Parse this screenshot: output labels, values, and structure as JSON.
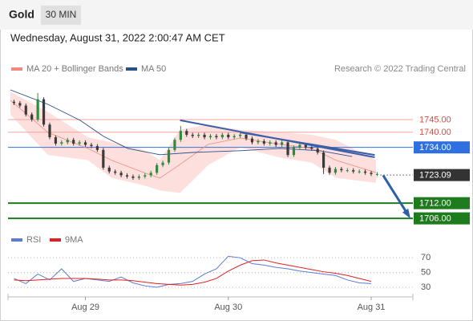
{
  "header": {
    "title": "Gold",
    "timeframe": "30 MIN",
    "timestamp": "Wednesday, August 31, 2022 2:00:47 AM CET"
  },
  "credit": "Research © 2022 Trading Central",
  "chart_data": [
    {
      "type": "candlestick",
      "xlim": [
        -13,
        55
      ],
      "ylim": [
        1703.5,
        1760.5
      ],
      "up_color": "#2e8b3e",
      "down_color": "#3a3a3a",
      "x": [
        -12,
        -11,
        -10,
        -9,
        -8,
        -7,
        -6,
        -5,
        -4,
        -3,
        -2,
        -1,
        0,
        1,
        2,
        3,
        4,
        5,
        6,
        7,
        8,
        9,
        10,
        11,
        12,
        13,
        14,
        15,
        16,
        17,
        18,
        19,
        20,
        21,
        22,
        23,
        24,
        25,
        26,
        27,
        28,
        29,
        30,
        31,
        32,
        33,
        34,
        35,
        36,
        37,
        38,
        39,
        40,
        41,
        42,
        43,
        44,
        45,
        46,
        47,
        48,
        49
      ],
      "open": [
        1752,
        1751.5,
        1750.5,
        1747,
        1745,
        1753,
        1743,
        1738,
        1735.5,
        1736,
        1737,
        1735.5,
        1736,
        1735,
        1734.5,
        1733,
        1726,
        1724.5,
        1724,
        1723,
        1722.5,
        1722,
        1722.5,
        1723,
        1724,
        1727,
        1728,
        1733,
        1737,
        1740.5,
        1739,
        1738.5,
        1739,
        1738,
        1738.5,
        1738,
        1739,
        1738,
        1738.5,
        1739,
        1737.5,
        1736,
        1736.5,
        1735.5,
        1736,
        1735,
        1736,
        1731,
        1734,
        1735,
        1734,
        1733.5,
        1732,
        1726,
        1724,
        1725.5,
        1725,
        1725,
        1724.5,
        1724.5,
        1724,
        1723.5
      ],
      "high": [
        1752.8,
        1752.3,
        1751.3,
        1747.8,
        1755.5,
        1753.8,
        1743.8,
        1738.8,
        1736.8,
        1737.8,
        1737.8,
        1736.8,
        1736.8,
        1735.8,
        1735.3,
        1733.8,
        1726.8,
        1725.3,
        1724.8,
        1723.8,
        1723.3,
        1723.3,
        1723.8,
        1724.8,
        1727.8,
        1728.8,
        1733.8,
        1737.8,
        1742.5,
        1741.3,
        1739.8,
        1739.8,
        1739.8,
        1739.3,
        1739.3,
        1739.8,
        1739.8,
        1739.3,
        1739.8,
        1739.8,
        1738.3,
        1737.3,
        1737.3,
        1736.8,
        1736.8,
        1736.8,
        1736.8,
        1734.8,
        1735.8,
        1735.8,
        1734.8,
        1734.3,
        1732.8,
        1726.8,
        1726.3,
        1726.3,
        1725.8,
        1725.8,
        1725.3,
        1725.3,
        1724.8,
        1724.3
      ],
      "low": [
        1750.7,
        1749.7,
        1746.2,
        1744.2,
        1744.2,
        1742.2,
        1737.2,
        1734.7,
        1734.7,
        1735.2,
        1734.7,
        1734.7,
        1734.2,
        1733.7,
        1732.2,
        1725.2,
        1723.7,
        1723.2,
        1722.2,
        1721.7,
        1721.2,
        1721.2,
        1721.7,
        1722.2,
        1723.2,
        1726.2,
        1727.2,
        1732.2,
        1736.2,
        1738.2,
        1737.7,
        1737.7,
        1737.2,
        1737.2,
        1737.2,
        1737.2,
        1737.2,
        1737.2,
        1737.7,
        1736.7,
        1735.2,
        1735.2,
        1734.7,
        1734.7,
        1734.2,
        1734.2,
        1730.2,
        1730.2,
        1733.2,
        1733.2,
        1732.7,
        1731.2,
        1723.5,
        1723.2,
        1723.2,
        1724.2,
        1724.2,
        1723.7,
        1723.7,
        1723.2,
        1722.7,
        1722.7
      ],
      "close": [
        1751.5,
        1750.5,
        1747,
        1745,
        1753,
        1743,
        1738,
        1735.5,
        1736,
        1737,
        1735.5,
        1736,
        1735,
        1734.5,
        1733,
        1726,
        1724.5,
        1724,
        1723,
        1722.5,
        1722,
        1722.5,
        1723,
        1724,
        1727,
        1728,
        1733,
        1737,
        1740.5,
        1739,
        1738.5,
        1739,
        1738,
        1738.5,
        1738,
        1739,
        1738,
        1738.5,
        1739,
        1737.5,
        1736,
        1736.5,
        1735.5,
        1736,
        1735,
        1736,
        1731,
        1734,
        1735,
        1734,
        1733.5,
        1732,
        1726,
        1724,
        1725.5,
        1725,
        1725,
        1724.5,
        1724.5,
        1724,
        1723.5,
        1723.5
      ],
      "series": [
        {
          "name": "MA 20 + Bollinger Bands",
          "color": "#f08a80",
          "band_color": "#fde0de",
          "x": [
            -12.6,
            -6.3,
            0.4,
            4.4,
            9.8,
            12.5,
            15.9,
            20.6,
            26,
            32.7,
            38,
            42.1,
            48.8
          ],
          "values": [
            1752.6,
            1739.9,
            1733.6,
            1728.9,
            1724.1,
            1721.9,
            1727.3,
            1735.2,
            1737.7,
            1735.2,
            1733.6,
            1728.9,
            1724.1
          ],
          "upper": [
            1756,
            1748,
            1738,
            1736,
            1733,
            1729,
            1741,
            1743,
            1741,
            1740,
            1739,
            1737,
            1729
          ],
          "lower": [
            1747,
            1731,
            1729,
            1722,
            1719,
            1717,
            1716,
            1727,
            1734,
            1730,
            1728,
            1722,
            1720
          ]
        },
        {
          "name": "MA 50",
          "color": "#2b4f8a",
          "x": [
            -12.6,
            -6.3,
            -0.9,
            3.1,
            7.1,
            12.5,
            17.9,
            26,
            32.7,
            39.4,
            44.8
          ],
          "values": [
            1756.7,
            1751,
            1744.7,
            1738.3,
            1733.6,
            1731.1,
            1732,
            1732.7,
            1733.6,
            1732.7,
            1730.4
          ]
        }
      ],
      "trendlines": [
        {
          "color": "#3b5ea8",
          "x": [
            15.9,
            48.6
          ],
          "values": [
            1744.7,
            1730.1
          ]
        },
        {
          "color": "#3b5ea8",
          "x": [
            26,
            48.6
          ],
          "values": [
            1739.9,
            1731
          ]
        }
      ],
      "projection": {
        "color": "#2f5fa8",
        "x": [
          50,
          54.3
        ],
        "values": [
          1723,
          1707
        ]
      },
      "levels": [
        {
          "price": {
            "value": 1745,
            "label": "1745.00"
          },
          "line_color": "#f4a39c",
          "line": "solid",
          "box": "#ffffff",
          "text_color": "#e04b3f"
        },
        {
          "price": {
            "value": 1740,
            "label": "1740.00"
          },
          "line_color": "#f4a39c",
          "line": "solid",
          "box": "#ffffff",
          "text_color": "#e04b3f"
        },
        {
          "price": {
            "value": 1734,
            "label": "1734.00"
          },
          "line_color": "#3a6fd8",
          "line": "solid",
          "box": "#2f6fe0",
          "text_color": "#ffffff"
        },
        {
          "price": 1723.09,
          "line_color": "#555555",
          "line": "dotted",
          "box": "#333333",
          "text_color": "#ffffff"
        },
        {
          "price": {
            "value": 1712,
            "label": "1712.00"
          },
          "line_color": "#1e7b1e",
          "line": "thick",
          "box": "#1e7b1e",
          "text_color": "#ffffff"
        },
        {
          "price": {
            "value": 1706,
            "label": "1706.00"
          },
          "line_color": "#1e7b1e",
          "line": "thick",
          "box": "#1e7b1e",
          "text_color": "#ffffff"
        }
      ]
    },
    {
      "type": "line",
      "xlim": [
        -13,
        55
      ],
      "ylim": [
        17,
        93
      ],
      "yticks": [
        70,
        50,
        30
      ],
      "grid": true,
      "xticks": [
        {
          "value": 0,
          "label": "Aug 29"
        },
        {
          "value": 24,
          "label": "Aug 30"
        },
        {
          "value": 48,
          "label": "Aug 31"
        }
      ],
      "x": [
        -12,
        -10,
        -8,
        -6,
        -4,
        -2,
        0,
        2,
        4,
        6,
        8,
        10,
        12,
        14,
        16,
        18,
        20,
        22,
        24,
        26,
        28,
        30,
        32,
        34,
        36,
        38,
        40,
        42,
        44,
        46,
        48
      ],
      "series": [
        {
          "name": "RSI",
          "color": "#5b7bd5",
          "values": [
            42,
            35,
            48,
            40,
            55,
            38,
            42,
            40,
            38,
            44,
            36,
            32,
            30,
            34,
            35,
            38,
            48,
            55,
            72,
            70,
            62,
            60,
            57,
            55,
            52,
            50,
            48,
            46,
            40,
            36,
            35
          ]
        },
        {
          "name": "9MA",
          "color": "#e02020",
          "values": [
            40,
            39,
            40,
            41,
            42,
            42,
            42,
            41,
            40,
            40,
            39,
            37,
            35,
            34,
            33,
            34,
            37,
            42,
            52,
            60,
            66,
            67,
            63,
            60,
            57,
            54,
            51,
            49,
            46,
            42,
            38
          ]
        }
      ]
    }
  ]
}
